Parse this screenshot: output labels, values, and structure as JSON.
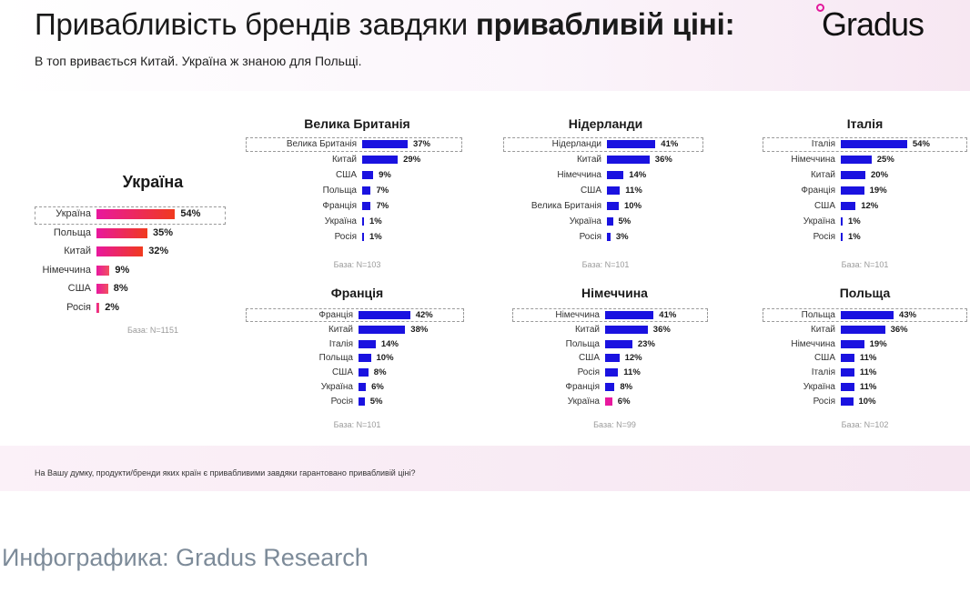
{
  "header": {
    "title_regular": "Привабливість брендів завдяки ",
    "title_bold": "привабливій ціні:",
    "subtitle": "В топ вривається Китай. Україна ж знаною для Польщі.",
    "logo_text": "Gradus"
  },
  "footer": {
    "question": "На Вашу думку, продукти/бренди яких країн є привабливими завдяки гарантовано привабливій ціні?",
    "caption": "Инфографика: Gradus Research"
  },
  "colors": {
    "blue": "#1a12e0",
    "pink": "#e8189e",
    "red": "#f03a1e"
  },
  "chart_data": [
    {
      "type": "bar",
      "title": "Україна",
      "base": "База: N=1151",
      "categories": [
        "Україна",
        "Польща",
        "Китай",
        "Німеччина",
        "США",
        "Росія"
      ],
      "values": [
        54,
        35,
        32,
        9,
        8,
        2
      ],
      "labels": [
        "54%",
        "35%",
        "32%",
        "9%",
        "8%",
        "2%"
      ],
      "highlight": "Україна",
      "color": "gradient-pink-red",
      "ylim": [
        0,
        60
      ]
    },
    {
      "type": "bar",
      "title": "Велика Британія",
      "base": "База: N=103",
      "categories": [
        "Велика Британія",
        "Китай",
        "США",
        "Польща",
        "Франція",
        "Україна",
        "Росія"
      ],
      "values": [
        37,
        29,
        9,
        7,
        7,
        1,
        1
      ],
      "labels": [
        "37%",
        "29%",
        "9%",
        "7%",
        "7%",
        "1%",
        "1%"
      ],
      "highlight": "Велика Британія",
      "color": "blue",
      "ylim": [
        0,
        60
      ]
    },
    {
      "type": "bar",
      "title": "Нідерланди",
      "base": "База: N=101",
      "categories": [
        "Нідерланди",
        "Китай",
        "Німеччина",
        "США",
        "Велика Британія",
        "Україна",
        "Росія"
      ],
      "values": [
        41,
        36,
        14,
        11,
        10,
        5,
        3
      ],
      "labels": [
        "41%",
        "36%",
        "14%",
        "11%",
        "10%",
        "5%",
        "3%"
      ],
      "highlight": "Нідерланди",
      "color": "blue",
      "ylim": [
        0,
        60
      ]
    },
    {
      "type": "bar",
      "title": "Італія",
      "base": "База: N=101",
      "categories": [
        "Італія",
        "Німеччина",
        "Китай",
        "Франція",
        "США",
        "Україна",
        "Росія"
      ],
      "values": [
        54,
        25,
        20,
        19,
        12,
        1,
        1
      ],
      "labels": [
        "54%",
        "25%",
        "20%",
        "19%",
        "12%",
        "1%",
        "1%"
      ],
      "highlight": "Італія",
      "color": "blue",
      "ylim": [
        0,
        60
      ]
    },
    {
      "type": "bar",
      "title": "Франція",
      "base": "База: N=101",
      "categories": [
        "Франція",
        "Китай",
        "Італія",
        "Польща",
        "США",
        "Україна",
        "Росія"
      ],
      "values": [
        42,
        38,
        14,
        10,
        8,
        6,
        5
      ],
      "labels": [
        "42%",
        "38%",
        "14%",
        "10%",
        "8%",
        "6%",
        "5%"
      ],
      "highlight": "Франція",
      "color": "blue",
      "ylim": [
        0,
        60
      ]
    },
    {
      "type": "bar",
      "title": "Німеччина",
      "base": "База: N=99",
      "categories": [
        "Німеччина",
        "Китай",
        "Польща",
        "США",
        "Росія",
        "Франція",
        "Україна"
      ],
      "values": [
        41,
        36,
        23,
        12,
        11,
        8,
        6
      ],
      "labels": [
        "41%",
        "36%",
        "23%",
        "12%",
        "11%",
        "8%",
        "6%"
      ],
      "highlight": "Німеччина",
      "pink_category": "Україна",
      "color": "blue",
      "ylim": [
        0,
        60
      ]
    },
    {
      "type": "bar",
      "title": "Польща",
      "base": "База: N=102",
      "categories": [
        "Польща",
        "Китай",
        "Німеччина",
        "США",
        "Італія",
        "Україна",
        "Росія"
      ],
      "values": [
        43,
        36,
        19,
        11,
        11,
        11,
        10
      ],
      "labels": [
        "43%",
        "36%",
        "19%",
        "11%",
        "11%",
        "11%",
        "10%"
      ],
      "highlight": "Польща",
      "color": "blue",
      "ylim": [
        0,
        60
      ]
    }
  ]
}
